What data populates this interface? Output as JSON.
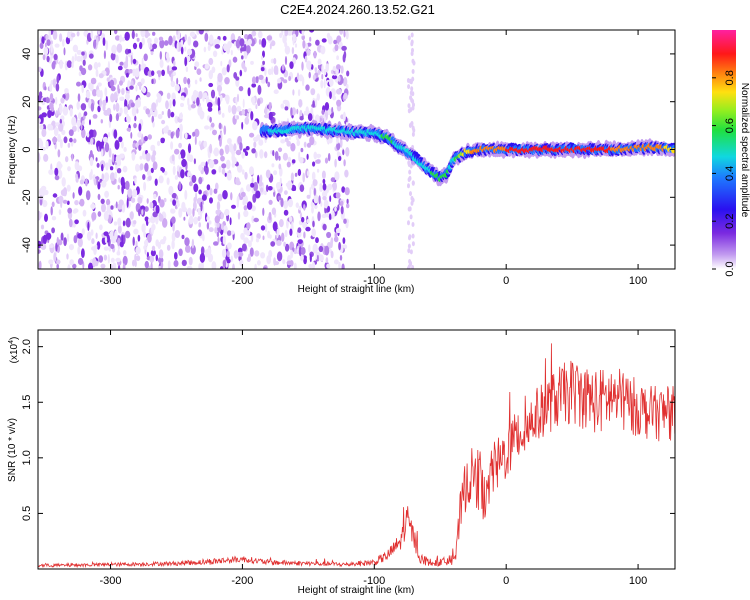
{
  "title": "C2E4.2024.260.13.52.G21",
  "chart_data": [
    {
      "type": "heatmap",
      "xlabel": "Height of straight line (km)",
      "ylabel": "Frequency (Hz)",
      "xlim": [
        -355,
        128
      ],
      "ylim": [
        -50,
        50
      ],
      "x_ticks": [
        -300,
        -200,
        -100,
        0,
        100
      ],
      "x_tick_labels": [
        "-300",
        "-200",
        "-100",
        "0",
        "100"
      ],
      "y_ticks": [
        -40,
        -20,
        0,
        20,
        40
      ],
      "y_tick_labels": [
        "-40",
        "-20",
        "0",
        "20",
        "40"
      ],
      "colorbar": {
        "label": "Normalized spectral amplitude",
        "range": [
          0,
          1
        ],
        "ticks": [
          0.0,
          0.2,
          0.4,
          0.6,
          0.8
        ],
        "tick_labels": [
          "0.0",
          "0.2",
          "0.4",
          "0.6",
          "0.8"
        ],
        "colormap": "rainbow (white to purple to blue to cyan to green to yellow to red to magenta)"
      },
      "noise_region_x": [
        -355,
        -120
      ],
      "ridge": {
        "x": [
          -185,
          -170,
          -150,
          -130,
          -115,
          -100,
          -90,
          -80,
          -70,
          -60,
          -55,
          -50,
          -45,
          -40,
          -30,
          -20,
          0,
          20,
          50,
          80,
          110,
          128
        ],
        "frequency": [
          8,
          8,
          9,
          8,
          7,
          7,
          5,
          1,
          -3,
          -8,
          -10,
          -12,
          -10,
          -4,
          -1,
          0,
          0,
          0,
          0,
          0,
          1,
          0
        ],
        "peak_amplitude": [
          0.45,
          0.5,
          0.55,
          0.5,
          0.5,
          0.55,
          0.6,
          0.55,
          0.5,
          0.55,
          0.6,
          0.65,
          0.6,
          0.55,
          0.8,
          0.85,
          0.9,
          0.9,
          0.9,
          0.9,
          0.85,
          0.8
        ]
      }
    },
    {
      "type": "line",
      "xlabel": "Height of straight line (km)",
      "ylabel": "SNR (10 * v/v)",
      "y_multiplier_label": "(x10",
      "y_multiplier_exponent": "4",
      "xlim": [
        -355,
        128
      ],
      "ylim": [
        0,
        21500
      ],
      "x_ticks": [
        -300,
        -200,
        -100,
        0,
        100
      ],
      "x_tick_labels": [
        "-300",
        "-200",
        "-100",
        "0",
        "100"
      ],
      "y_ticks": [
        5000,
        10000,
        15000,
        20000
      ],
      "y_tick_labels": [
        "0.5",
        "1.0",
        "1.5",
        "2.0"
      ],
      "color": "#e03030",
      "series": [
        {
          "x": [
            -355,
            -300,
            -250,
            -220,
            -200,
            -180,
            -150,
            -120,
            -100,
            -90,
            -80,
            -75,
            -72,
            -65,
            -55,
            -45,
            -38,
            -35,
            -30,
            -25,
            -20,
            -15,
            -10,
            -5,
            0,
            10,
            20,
            30,
            40,
            50,
            60,
            70,
            80,
            90,
            100,
            110,
            120,
            128
          ],
          "values": [
            300,
            400,
            500,
            700,
            900,
            600,
            500,
            400,
            600,
            1200,
            2500,
            4500,
            3500,
            900,
            500,
            700,
            1200,
            5000,
            8000,
            8500,
            7500,
            6000,
            9000,
            9500,
            10500,
            12000,
            13500,
            14500,
            15500,
            16000,
            15500,
            15000,
            15500,
            15000,
            14500,
            14000,
            14000,
            14000
          ],
          "noise_amplitude": [
            150,
            150,
            200,
            300,
            300,
            250,
            200,
            200,
            300,
            500,
            900,
            1300,
            1200,
            500,
            300,
            400,
            800,
            1800,
            2500,
            2500,
            2500,
            2200,
            2500,
            2500,
            2500,
            2500,
            2500,
            2500,
            2800,
            3000,
            3000,
            3000,
            3000,
            2800,
            2600,
            2500,
            2500,
            2500
          ]
        }
      ]
    }
  ]
}
